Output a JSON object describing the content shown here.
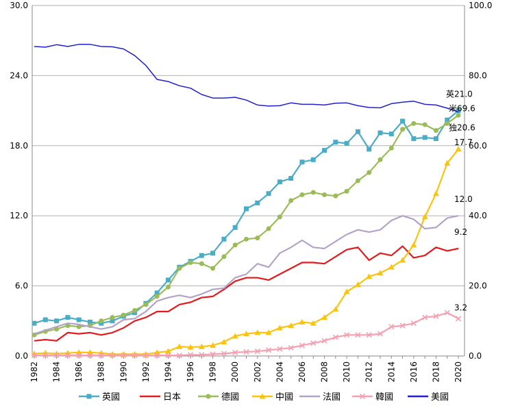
{
  "chart_data": {
    "type": "line",
    "x": [
      1982,
      1983,
      1984,
      1985,
      1986,
      1987,
      1988,
      1989,
      1990,
      1991,
      1992,
      1993,
      1994,
      1995,
      1996,
      1997,
      1998,
      1999,
      2000,
      2001,
      2002,
      2003,
      2004,
      2005,
      2006,
      2007,
      2008,
      2009,
      2010,
      2011,
      2012,
      2013,
      2014,
      2015,
      2016,
      2017,
      2018,
      2019,
      2020
    ],
    "x_tick_labels": [
      "1982",
      "1984",
      "1986",
      "1988",
      "1990",
      "1992",
      "1994",
      "1996",
      "1998",
      "2000",
      "2002",
      "2004",
      "2006",
      "2008",
      "2010",
      "2012",
      "2014",
      "2016",
      "2018",
      "2020"
    ],
    "y_left": {
      "range": [
        0,
        30
      ],
      "ticks": [
        "0.0",
        "6.0",
        "12.0",
        "18.0",
        "24.0",
        "30.0"
      ]
    },
    "y_right": {
      "range": [
        0,
        100
      ],
      "ticks": [
        "0.0",
        "20.0",
        "40.0",
        "60.0",
        "80.0",
        "100.0"
      ]
    },
    "series": [
      {
        "name": "英國",
        "axis": "left",
        "color": "#4bacc6",
        "marker": "square",
        "values": [
          2.8,
          3.1,
          3.0,
          3.3,
          3.1,
          2.9,
          2.8,
          3.0,
          3.4,
          3.7,
          4.5,
          5.4,
          6.5,
          7.6,
          8.1,
          8.6,
          8.8,
          10.0,
          11.0,
          12.6,
          13.1,
          13.9,
          14.9,
          15.2,
          16.6,
          16.8,
          17.6,
          18.3,
          18.2,
          19.2,
          17.7,
          19.1,
          19.0,
          20.1,
          18.6,
          18.7,
          18.6,
          20.2,
          21.0
        ]
      },
      {
        "name": "日本",
        "axis": "left",
        "color": "#e31a1c",
        "marker": "none",
        "values": [
          1.3,
          1.4,
          1.3,
          2.0,
          1.9,
          2.0,
          1.8,
          2.0,
          2.4,
          3.0,
          3.3,
          3.8,
          3.8,
          4.4,
          4.6,
          5.0,
          5.1,
          5.7,
          6.4,
          6.7,
          6.7,
          6.5,
          7.0,
          7.5,
          8.0,
          8.0,
          7.9,
          8.5,
          9.1,
          9.3,
          8.2,
          8.8,
          8.6,
          9.4,
          8.4,
          8.6,
          9.3,
          9.0,
          9.2
        ]
      },
      {
        "name": "德國",
        "axis": "left",
        "color": "#9bbb59",
        "marker": "circle",
        "values": [
          1.8,
          2.1,
          2.3,
          2.6,
          2.5,
          2.6,
          3.0,
          3.3,
          3.5,
          3.9,
          4.4,
          5.1,
          5.9,
          7.5,
          8.0,
          7.9,
          7.5,
          8.5,
          9.5,
          10.0,
          10.1,
          10.9,
          11.9,
          13.3,
          13.8,
          14.0,
          13.8,
          13.7,
          14.1,
          15.0,
          15.7,
          16.8,
          17.8,
          19.4,
          19.9,
          19.8,
          19.3,
          19.9,
          20.6
        ]
      },
      {
        "name": "中國",
        "axis": "left",
        "color": "#fcc30b",
        "marker": "triangle",
        "values": [
          0.2,
          0.25,
          0.2,
          0.25,
          0.3,
          0.3,
          0.25,
          0.15,
          0.15,
          0.15,
          0.15,
          0.3,
          0.4,
          0.8,
          0.75,
          0.8,
          0.9,
          1.2,
          1.7,
          1.9,
          2.0,
          2.0,
          2.4,
          2.6,
          2.9,
          2.8,
          3.3,
          4.0,
          5.5,
          6.1,
          6.8,
          7.1,
          7.6,
          8.2,
          9.5,
          11.9,
          13.9,
          16.5,
          17.7
        ]
      },
      {
        "name": "法國",
        "axis": "left",
        "color": "#b3a2c7",
        "marker": "none",
        "values": [
          1.9,
          2.2,
          2.5,
          2.8,
          2.7,
          2.5,
          2.3,
          2.5,
          3.1,
          3.2,
          3.8,
          4.7,
          5.0,
          5.2,
          5.0,
          5.3,
          5.7,
          5.8,
          6.7,
          7.0,
          7.9,
          7.6,
          8.8,
          9.3,
          9.9,
          9.3,
          9.2,
          9.8,
          10.4,
          10.8,
          10.6,
          10.8,
          11.6,
          12.0,
          11.7,
          10.9,
          11.0,
          11.8,
          12.0
        ]
      },
      {
        "name": "韓國",
        "axis": "left",
        "color": "#f4a0b0",
        "marker": "x",
        "values": [
          0.05,
          0.05,
          0.05,
          0.05,
          0.05,
          0.05,
          0.05,
          0.05,
          0.05,
          0.05,
          0.05,
          0.05,
          0.05,
          0.05,
          0.1,
          0.1,
          0.15,
          0.2,
          0.3,
          0.35,
          0.4,
          0.5,
          0.6,
          0.7,
          0.9,
          1.1,
          1.3,
          1.6,
          1.8,
          1.8,
          1.8,
          1.9,
          2.5,
          2.6,
          2.8,
          3.3,
          3.4,
          3.7,
          3.2
        ]
      },
      {
        "name": "美國",
        "axis": "right",
        "color": "#1f1fcc",
        "marker": "none",
        "values": [
          88.3,
          88.1,
          88.8,
          88.3,
          88.9,
          88.9,
          88.3,
          88.2,
          87.6,
          85.7,
          82.9,
          78.9,
          78.3,
          77.1,
          76.4,
          74.6,
          73.6,
          73.6,
          73.8,
          73.0,
          71.6,
          71.3,
          71.4,
          72.2,
          71.8,
          71.8,
          71.6,
          72.1,
          72.2,
          71.4,
          70.9,
          70.8,
          72.0,
          72.4,
          72.7,
          71.8,
          71.6,
          70.7,
          69.6
        ]
      }
    ],
    "end_labels": [
      {
        "series": "英國",
        "text": "英21.0"
      },
      {
        "series": "美國",
        "text": "米69.6"
      },
      {
        "series": "德國",
        "text": "独20.6"
      },
      {
        "series": "中國",
        "text": "17.7"
      },
      {
        "series": "法國",
        "text": "12.0"
      },
      {
        "series": "日本",
        "text": "9.2"
      },
      {
        "series": "韓國",
        "text": "3.2"
      }
    ],
    "legend_position": "bottom",
    "grid": "horizontal"
  }
}
